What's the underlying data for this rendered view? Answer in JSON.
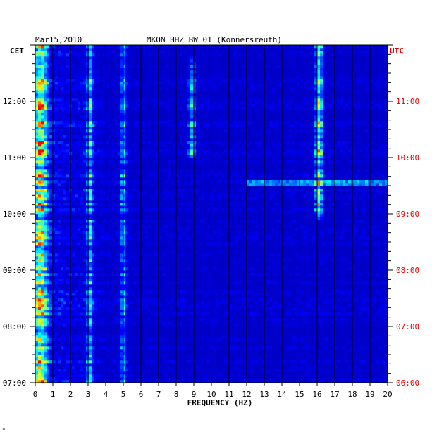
{
  "header": {
    "date": "Mar15,2010",
    "station": "MKON HHZ BW 01 (Konnersreuth)"
  },
  "chart_data": {
    "type": "heatmap",
    "title": "MKON HHZ BW 01 (Konnersreuth)",
    "date": "Mar15,2010",
    "xlabel": "FREQUENCY (HZ)",
    "xlim": [
      0,
      20
    ],
    "x_ticks": [
      "0",
      "1",
      "2",
      "3",
      "4",
      "5",
      "6",
      "7",
      "8",
      "9",
      "10",
      "11",
      "12",
      "13",
      "14",
      "15",
      "16",
      "17",
      "18",
      "19",
      "20"
    ],
    "left_axis": {
      "label": "CET",
      "ticks": [
        "12:00",
        "11:00",
        "10:00",
        "09:00",
        "08:00",
        "07:00"
      ],
      "color": "#000000"
    },
    "right_axis": {
      "label": "UTC",
      "ticks": [
        "11:00",
        "10:00",
        "09:00",
        "08:00",
        "07:00",
        "06:00"
      ],
      "color": "#e00000"
    },
    "ylim_cet_hours": [
      7.0,
      13.0
    ],
    "grid": true,
    "colormap": [
      "#000080",
      "#0000ff",
      "#00ffff",
      "#ffff00",
      "#ff0000"
    ],
    "features": [
      {
        "freq_hz": 0.3,
        "description_label": "",
        "intensity": 0.85
      },
      {
        "freq_hz": 16.1,
        "intensity": 0.8,
        "time_cet": [
          9.9,
          13.0
        ]
      },
      {
        "freq_hz": 8.9,
        "intensity": 0.45,
        "time_cet": [
          11.0,
          12.8
        ]
      },
      {
        "freq_hz": 3.1,
        "intensity": 0.5
      },
      {
        "freq_hz": 5.0,
        "intensity": 0.45
      },
      {
        "time_cet": 10.55,
        "intensity": 0.55,
        "freq_hz_range": [
          12.0,
          20.0
        ]
      }
    ]
  },
  "footer": {
    "mark": "*"
  }
}
